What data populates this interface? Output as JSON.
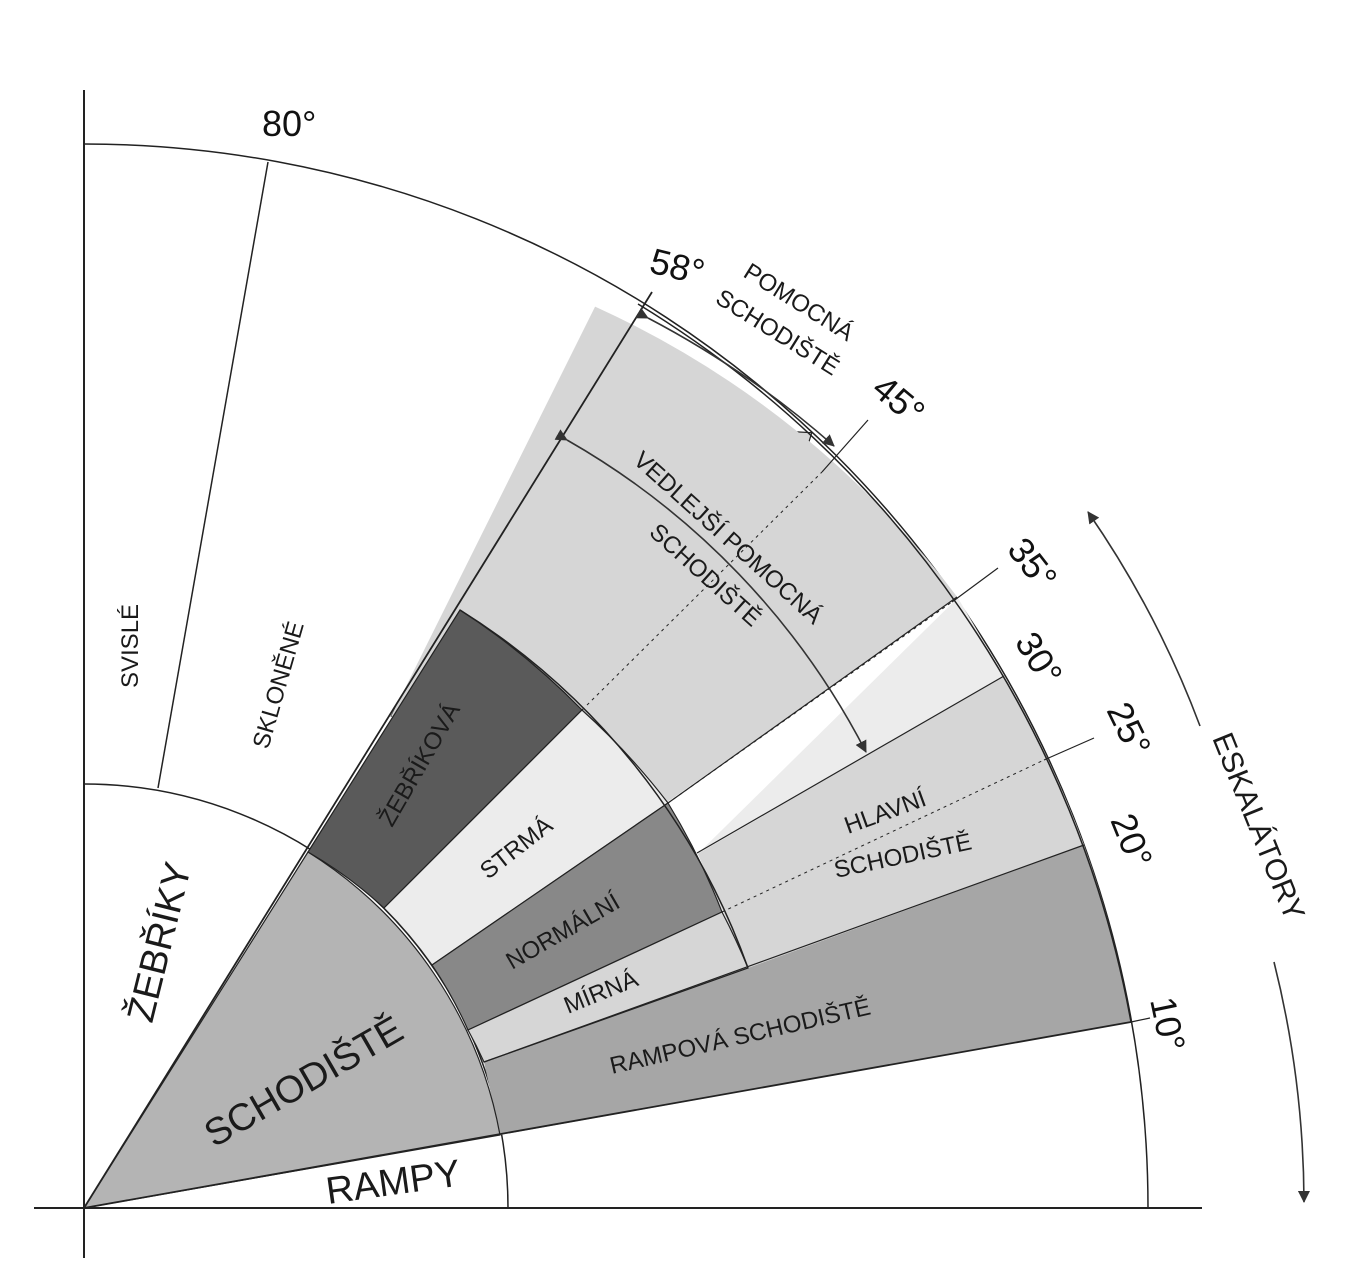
{
  "angles": {
    "a80": "80°",
    "a58": "58°",
    "a45": "45°",
    "a35": "35°",
    "a30": "30°",
    "a25": "25°",
    "a20": "20°",
    "a10": "10°"
  },
  "labels": {
    "svisle": "SVISLÉ",
    "sklonene": "SKLONĚNÉ",
    "zebriky": "ŽEBŘÍKY",
    "schodiste": "SCHODIŠTĚ",
    "rampy": "RAMPY",
    "zebrikova": "ŽEBŘÍKOVÁ",
    "strma": "STRMÁ",
    "normalni": "NORMÁLNÍ",
    "mirna": "MÍRNÁ",
    "rampova": "RAMPOVÁ SCHODIŠTĚ",
    "pomocna_1": "POMOCNÁ",
    "pomocna_2": "SCHODIŠTĚ",
    "vedlejsi_1": "VEDLEJŠÍ POMOCNÁ",
    "vedlejsi_2": "SCHODIŠTĚ",
    "hlavni_1": "HLAVNÍ",
    "hlavni_2": "SCHODIŠTĚ",
    "eskalatory": "ESKALÁTORY"
  },
  "colors": {
    "white": "#ffffff",
    "light": "#ececec",
    "lightgray": "#d6d6d6",
    "midgray": "#b4b4b4",
    "rampgray": "#a6a6a6",
    "normal": "#888888",
    "dark": "#5a5a5a"
  }
}
